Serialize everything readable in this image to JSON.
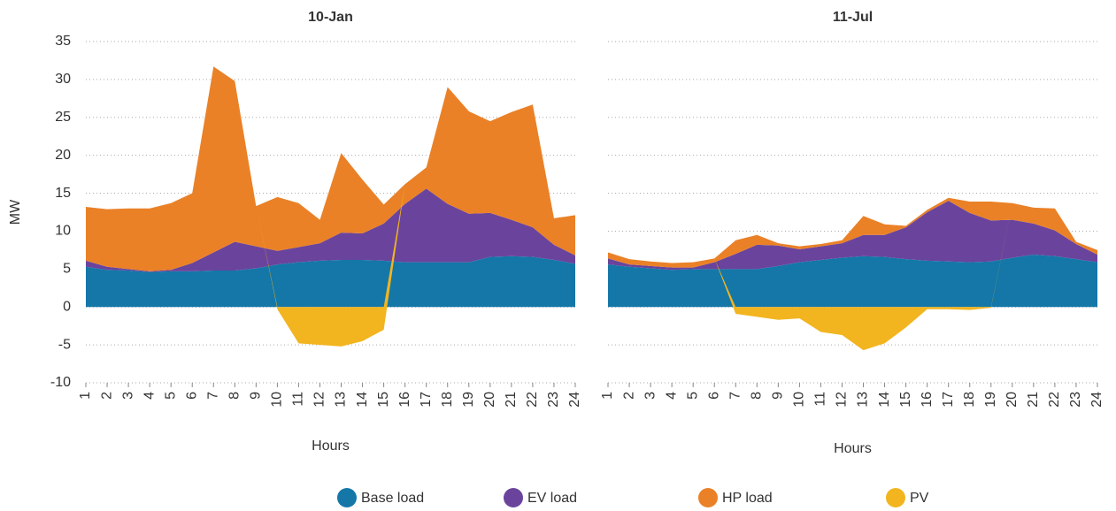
{
  "chart_data": [
    {
      "type": "area",
      "title": "10-Jan",
      "ylabel": "MW",
      "xlabel": "Hours",
      "categories": [
        "1",
        "2",
        "3",
        "4",
        "5",
        "6",
        "7",
        "8",
        "9",
        "10",
        "11",
        "12",
        "13",
        "14",
        "15",
        "16",
        "17",
        "18",
        "19",
        "20",
        "21",
        "22",
        "23",
        "24"
      ],
      "ylim": [
        -10,
        35
      ],
      "yticks": [
        35,
        30,
        25,
        20,
        15,
        10,
        5,
        0,
        -5,
        -10
      ],
      "grid": true,
      "series": [
        {
          "name": "Base load",
          "color": "#1477a8",
          "values": [
            5.3,
            4.9,
            4.8,
            4.6,
            4.7,
            4.7,
            4.8,
            4.8,
            5.1,
            5.6,
            5.9,
            6.1,
            6.2,
            6.2,
            6.1,
            5.9,
            5.9,
            5.9,
            5.9,
            6.6,
            6.7,
            6.6,
            6.2,
            5.7
          ]
        },
        {
          "name": "EV load",
          "color": "#6a449c",
          "values": [
            0.8,
            0.4,
            0.2,
            0.1,
            0.2,
            1.1,
            2.4,
            3.8,
            2.9,
            1.8,
            2.0,
            2.3,
            3.6,
            3.5,
            4.9,
            7.7,
            9.7,
            7.7,
            6.4,
            5.8,
            4.8,
            3.9,
            2.0,
            1.1
          ]
        },
        {
          "name": "HP load",
          "color": "#ea8127",
          "values": [
            7.1,
            7.6,
            8.0,
            8.3,
            8.8,
            9.2,
            24.5,
            21.2,
            5.3,
            7.1,
            5.8,
            3.1,
            10.5,
            7.1,
            2.5,
            2.6,
            2.8,
            15.4,
            13.5,
            12.1,
            14.2,
            16.2,
            3.5,
            5.3
          ]
        },
        {
          "name": "PV",
          "color": "#f2b51f",
          "values": [
            0,
            0,
            0,
            0,
            0,
            0,
            0,
            0,
            0,
            -0.3,
            -4.8,
            -5.0,
            -5.2,
            -4.5,
            -3.0,
            0,
            0,
            0,
            0,
            0,
            0,
            0,
            0,
            0
          ]
        }
      ]
    },
    {
      "type": "area",
      "title": "11-Jul",
      "xlabel": "Hours",
      "categories": [
        "1",
        "2",
        "3",
        "4",
        "5",
        "6",
        "7",
        "8",
        "9",
        "10",
        "11",
        "12",
        "13",
        "14",
        "15",
        "16",
        "17",
        "18",
        "19",
        "20",
        "21",
        "22",
        "23",
        "24"
      ],
      "ylim": [
        -10,
        35
      ],
      "yticks": [
        35,
        30,
        25,
        20,
        15,
        10,
        5,
        0,
        -5,
        -10
      ],
      "grid": true,
      "series": [
        {
          "color": "#1477a8",
          "values": [
            5.6,
            5.3,
            5.1,
            4.9,
            5.0,
            5.0,
            5.0,
            5.0,
            5.4,
            5.9,
            6.2,
            6.5,
            6.7,
            6.6,
            6.3,
            6.1,
            6.0,
            5.9,
            6.0,
            6.5,
            6.9,
            6.7,
            6.3,
            5.9
          ]
        },
        {
          "color": "#6a449c",
          "values": [
            0.8,
            0.3,
            0.3,
            0.3,
            0.2,
            0.9,
            2.0,
            3.2,
            2.7,
            1.7,
            1.8,
            1.9,
            2.8,
            2.9,
            4.2,
            6.4,
            8.0,
            6.5,
            5.4,
            5.0,
            4.1,
            3.4,
            2.0,
            1.0
          ]
        },
        {
          "color": "#ea8127",
          "values": [
            0.8,
            0.7,
            0.6,
            0.6,
            0.7,
            0.5,
            1.8,
            1.3,
            0.3,
            0.4,
            0.3,
            0.4,
            2.5,
            1.4,
            0.2,
            0.3,
            0.4,
            1.5,
            2.5,
            2.2,
            2.1,
            2.9,
            0.3,
            0.6
          ]
        },
        {
          "color": "#f2b51f",
          "values": [
            0,
            0,
            0,
            0,
            0,
            0,
            -0.9,
            -1.3,
            -1.7,
            -1.5,
            -3.3,
            -3.7,
            -5.7,
            -4.8,
            -2.7,
            -0.3,
            -0.3,
            -0.4,
            -0.1,
            0,
            0,
            0,
            0,
            0
          ]
        }
      ]
    }
  ]
}
